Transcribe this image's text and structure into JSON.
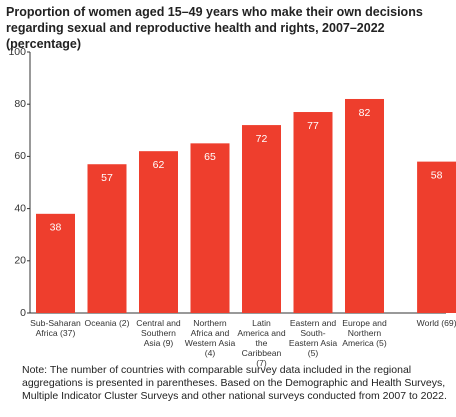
{
  "chart_data": {
    "type": "bar",
    "title": "Proportion of women aged 15–49 years who make their own decisions regarding sexual and reproductive health and rights, 2007–2022 (percentage)",
    "categories": [
      "Sub-Saharan Africa (37)",
      "Oceania (2)",
      "Central and Southern Asia (9)",
      "Northern Africa and Western Asia (4)",
      "Latin America and the Caribbean (7)",
      "Eastern and South-Eastern Asia (5)",
      "Europe and Northern America (5)",
      "World (69)"
    ],
    "values": [
      38,
      57,
      62,
      65,
      72,
      77,
      82,
      58
    ],
    "color": "#ee3e2d",
    "ylim": [
      0,
      100
    ],
    "yticks": [
      0,
      20,
      40,
      60,
      80,
      100
    ],
    "note": "Note: The number of countries with comparable survey data included in the regional aggregations is presented in parentheses. Based on the Demographic and Health Surveys, Multiple Indicator Cluster Surveys and other national surveys conducted from 2007 to 2022."
  }
}
